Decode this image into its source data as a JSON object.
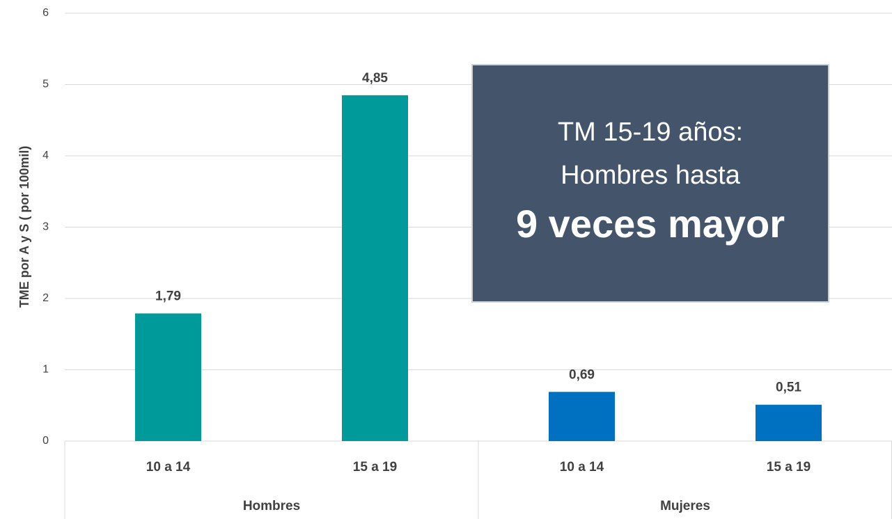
{
  "chart_data": {
    "type": "bar",
    "y_label": "TME por A y S ( por 100mil)",
    "categories": [
      "10 a 14",
      "15 a 19",
      "10 a 14",
      "15 a 19"
    ],
    "groups": [
      "Hombres",
      "Mujeres"
    ],
    "values": [
      1.79,
      4.85,
      0.69,
      0.51
    ],
    "value_labels": [
      "1,79",
      "4,85",
      "0,69",
      "0,51"
    ],
    "colors": [
      "#009a9a",
      "#009a9a",
      "#0070c0",
      "#0070c0"
    ],
    "ylim": [
      0,
      6
    ],
    "yticks": [
      0,
      1,
      2,
      3,
      4,
      5,
      6
    ],
    "grid": true,
    "annotation": [
      "TM 15-19 años:",
      "Hombres hasta",
      "9 veces mayor"
    ]
  }
}
